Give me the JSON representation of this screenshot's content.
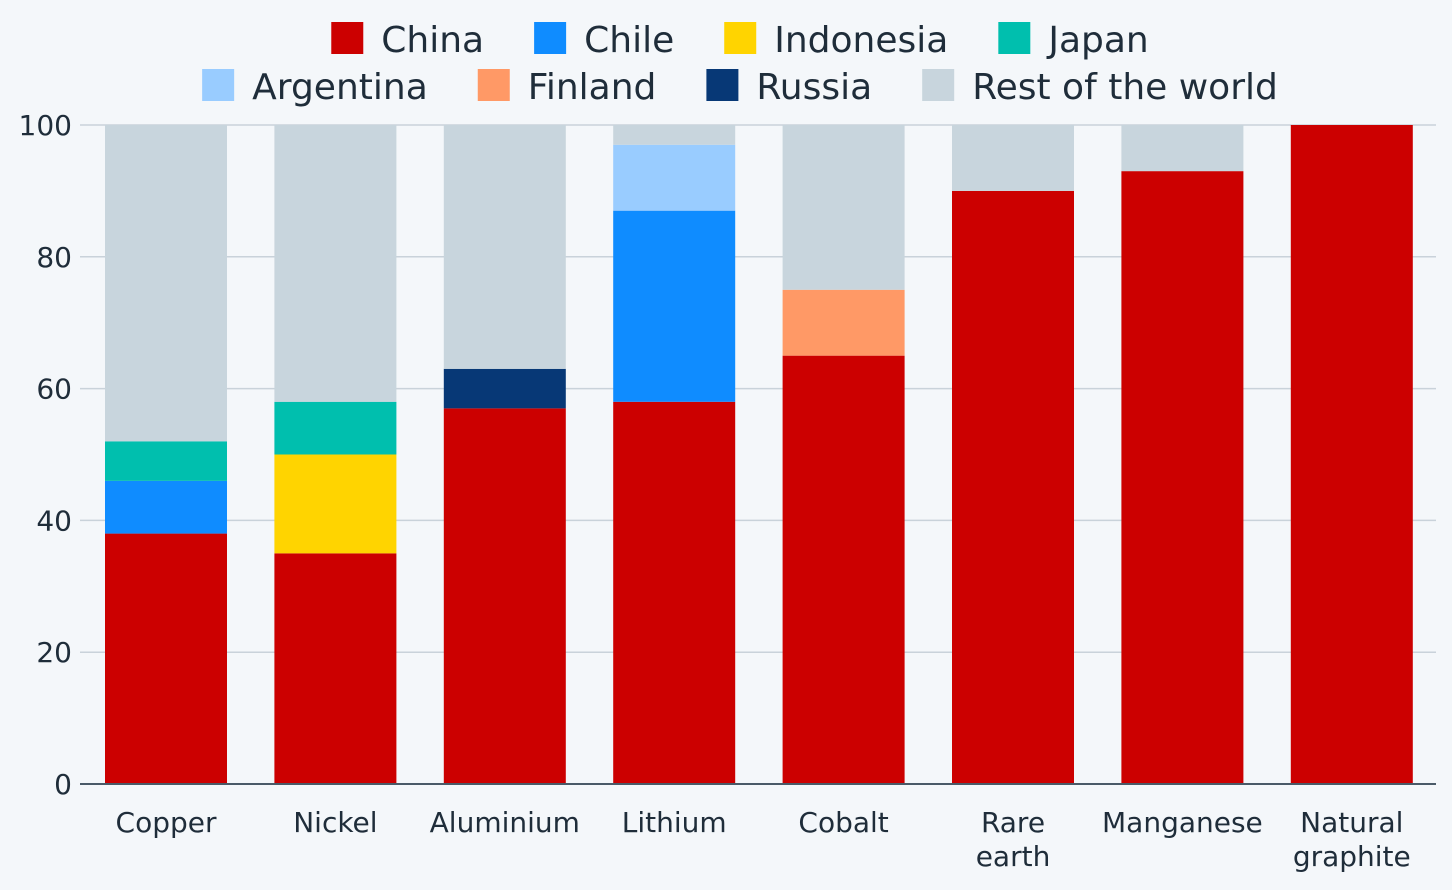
{
  "chart_data": {
    "type": "bar",
    "stacked": true,
    "categories": [
      [
        "Copper"
      ],
      [
        "Nickel"
      ],
      [
        "Aluminium"
      ],
      [
        "Lithium"
      ],
      [
        "Cobalt"
      ],
      [
        "Rare",
        "earth"
      ],
      [
        "Manganese"
      ],
      [
        "Natural",
        "graphite"
      ]
    ],
    "series": [
      {
        "name": "China",
        "color": "#cc0000",
        "values": [
          38,
          35,
          57,
          58,
          65,
          90,
          93,
          100
        ]
      },
      {
        "name": "Chile",
        "color": "#0f8cff",
        "values": [
          8,
          0,
          0,
          29,
          0,
          0,
          0,
          0
        ]
      },
      {
        "name": "Indonesia",
        "color": "#ffd400",
        "values": [
          0,
          15,
          0,
          0,
          0,
          0,
          0,
          0
        ]
      },
      {
        "name": "Japan",
        "color": "#00bfae",
        "values": [
          6,
          8,
          0,
          0,
          0,
          0,
          0,
          0
        ]
      },
      {
        "name": "Argentina",
        "color": "#99ccff",
        "values": [
          0,
          0,
          0,
          10,
          0,
          0,
          0,
          0
        ]
      },
      {
        "name": "Finland",
        "color": "#ff9966",
        "values": [
          0,
          0,
          0,
          0,
          10,
          0,
          0,
          0
        ]
      },
      {
        "name": "Russia",
        "color": "#073876",
        "values": [
          0,
          0,
          6,
          0,
          0,
          0,
          0,
          0
        ]
      },
      {
        "name": "Rest of the world",
        "color": "#c8d5dd",
        "values": [
          48,
          42,
          37,
          3,
          25,
          10,
          7,
          0
        ]
      }
    ],
    "legend_rows": [
      [
        0,
        1,
        2,
        3
      ],
      [
        4,
        5,
        6,
        7
      ]
    ],
    "legend_position": "top",
    "ylim": [
      0,
      100
    ],
    "yticks": [
      0,
      20,
      40,
      60,
      80,
      100
    ],
    "grid": true,
    "title": "",
    "xlabel": "",
    "ylabel": ""
  }
}
